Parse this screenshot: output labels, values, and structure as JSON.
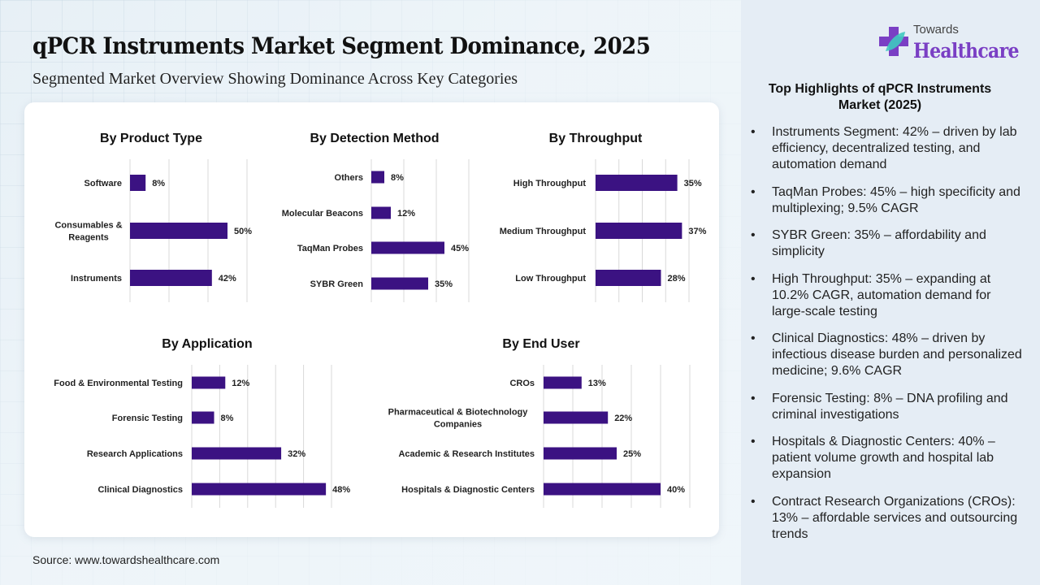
{
  "header": {
    "title": "qPCR Instruments Market Segment Dominance, 2025",
    "subtitle": "Segmented Market Overview Showing Dominance Across Key Categories"
  },
  "logo": {
    "line1": "Towards",
    "line2": "Healthcare",
    "icon": "medical-cross-leaf-icon"
  },
  "colors": {
    "bar": "#3b1282",
    "brand": "#7a3fc4",
    "panel_bg": "#e5edf5"
  },
  "highlights": {
    "title": "Top Highlights of qPCR Instruments Market (2025)",
    "bullet": "•",
    "items": [
      "Instruments Segment: 42% – driven by lab efficiency, decentralized testing, and automation demand",
      "TaqMan Probes: 45% – high specificity and multiplexing; 9.5% CAGR",
      "SYBR Green: 35% – affordability and simplicity",
      "High Throughput: 35% – expanding at 10.2% CAGR, automation demand for large-scale testing",
      "Clinical Diagnostics: 48% – driven by infectious disease burden and personalized medicine; 9.6% CAGR",
      "Forensic Testing: 8% – DNA profiling and criminal investigations",
      "Hospitals & Diagnostic Centers: 40% – patient volume growth and hospital lab expansion",
      "Contract Research Organizations (CROs): 13% – affordable services and outsourcing trends"
    ]
  },
  "source": "Source: www.towardshealthcare.com",
  "chart_data": [
    {
      "type": "bar",
      "orientation": "horizontal",
      "title": "By Product Type",
      "categories": [
        "Software",
        "Consumables & Reagents",
        "Instruments"
      ],
      "values": [
        8,
        50,
        42
      ],
      "value_labels": [
        "8%",
        "50%",
        "42%"
      ],
      "unit": "%",
      "xlim": [
        0,
        60
      ],
      "grid_step": 20,
      "grid": true
    },
    {
      "type": "bar",
      "orientation": "horizontal",
      "title": "By Detection Method",
      "categories": [
        "Others",
        "Molecular Beacons",
        "TaqMan Probes",
        "SYBR Green"
      ],
      "values": [
        8,
        12,
        45,
        35
      ],
      "value_labels": [
        "8%",
        "12%",
        "45%",
        "35%"
      ],
      "unit": "%",
      "xlim": [
        0,
        60
      ],
      "grid_step": 20,
      "grid": true
    },
    {
      "type": "bar",
      "orientation": "horizontal",
      "title": "By Throughput",
      "categories": [
        "High Throughput",
        "Medium Throughput",
        "Low Throughput"
      ],
      "values": [
        35,
        37,
        28
      ],
      "value_labels": [
        "35%",
        "37%",
        "28%"
      ],
      "unit": "%",
      "xlim": [
        0,
        40
      ],
      "grid_step": 10,
      "grid": true
    },
    {
      "type": "bar",
      "orientation": "horizontal",
      "title": "By Application",
      "categories": [
        "Food & Environmental Testing",
        "Forensic Testing",
        "Research Applications",
        "Clinical Diagnostics"
      ],
      "values": [
        12,
        8,
        32,
        48
      ],
      "value_labels": [
        "12%",
        "8%",
        "32%",
        "48%"
      ],
      "unit": "%",
      "xlim": [
        0,
        50
      ],
      "grid_step": 10,
      "grid": true
    },
    {
      "type": "bar",
      "orientation": "horizontal",
      "title": "By End User",
      "categories": [
        "CROs",
        "Pharmaceutical & Biotechnology Companies",
        "Academic & Research Institutes",
        "Hospitals & Diagnostic Centers"
      ],
      "values": [
        13,
        22,
        25,
        40
      ],
      "value_labels": [
        "13%",
        "22%",
        "25%",
        "40%"
      ],
      "unit": "%",
      "xlim": [
        0,
        50
      ],
      "grid_step": 10,
      "grid": true
    }
  ]
}
